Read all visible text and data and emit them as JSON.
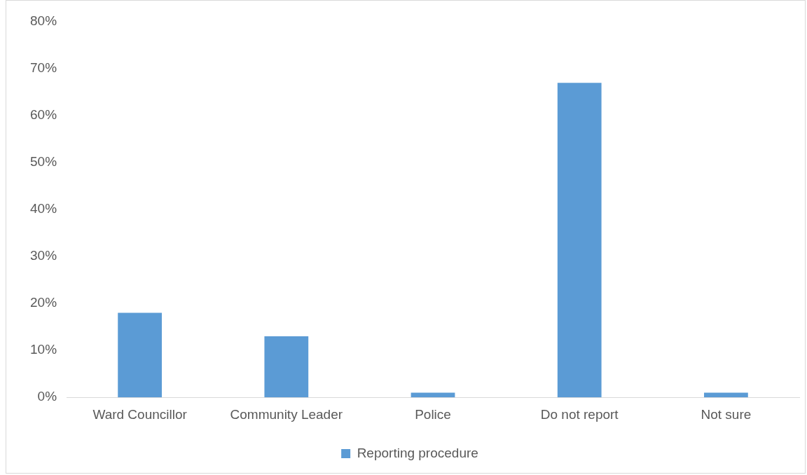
{
  "chart_data": {
    "type": "bar",
    "categories": [
      "Ward Councillor",
      "Community Leader",
      "Police",
      "Do not report",
      "Not sure"
    ],
    "series": [
      {
        "name": "Reporting procedure",
        "color": "#5b9bd5",
        "values": [
          18,
          13,
          1,
          67,
          1
        ]
      }
    ],
    "ylim": [
      0,
      80
    ],
    "yticks": [
      {
        "value": 0,
        "label": "0%"
      },
      {
        "value": 10,
        "label": "10%"
      },
      {
        "value": 20,
        "label": "20%"
      },
      {
        "value": 30,
        "label": "30%"
      },
      {
        "value": 40,
        "label": "40%"
      },
      {
        "value": 50,
        "label": "50%"
      },
      {
        "value": 60,
        "label": "60%"
      },
      {
        "value": 70,
        "label": "70%"
      },
      {
        "value": 80,
        "label": "80%"
      }
    ],
    "grid": false,
    "legend": "bottom"
  }
}
